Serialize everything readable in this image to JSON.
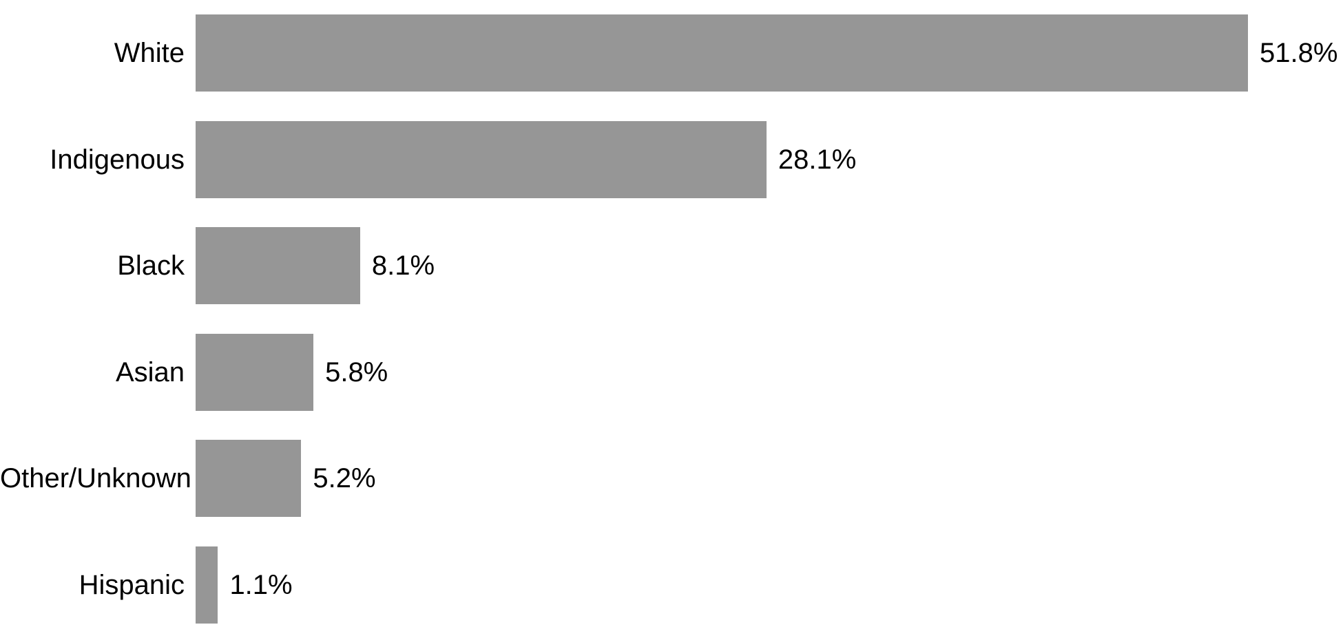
{
  "chart_data": {
    "type": "bar",
    "orientation": "horizontal",
    "title": "",
    "xlabel": "",
    "ylabel": "",
    "categories": [
      "White",
      "Indigenous",
      "Black",
      "Asian",
      "Other/Unknown",
      "Hispanic"
    ],
    "values": [
      51.8,
      28.1,
      8.1,
      5.8,
      5.2,
      1.1
    ],
    "value_labels": [
      "51.8%",
      "28.1%",
      "8.1%",
      "5.8%",
      "5.2%",
      "1.1%"
    ],
    "xlim": [
      0,
      55
    ],
    "grid": false,
    "legend": false,
    "data_label_position": "outside-end",
    "bar_color": "#969696",
    "text_color": "#000000",
    "background_color": "#ffffff"
  }
}
